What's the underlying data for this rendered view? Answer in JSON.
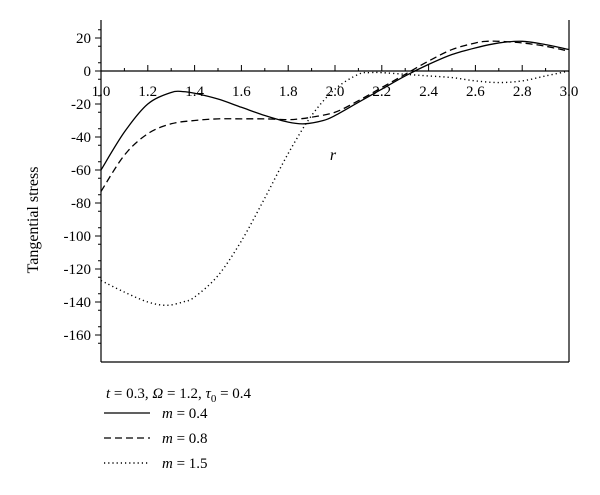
{
  "chart_data": {
    "type": "line",
    "title": "",
    "xlabel": "r",
    "ylabel": "Tangential stress",
    "xlim": [
      1.0,
      3.0
    ],
    "ylim": [
      -170,
      30
    ],
    "x_ticks": [
      1.0,
      1.2,
      1.4,
      1.6,
      1.8,
      2.0,
      2.2,
      2.4,
      2.6,
      2.8,
      3.0
    ],
    "x_tick_labels": [
      "1.0",
      "1.2",
      "1.4",
      "1.6",
      "1.8",
      "2.0",
      "2.2",
      "2.4",
      "2.6",
      "2.8",
      "3.0"
    ],
    "y_ticks": [
      20,
      0,
      -20,
      -40,
      -60,
      -80,
      -100,
      -120,
      -140,
      -160
    ],
    "y_tick_labels": [
      "20",
      "0",
      "-20",
      "-40",
      "-60",
      "-80",
      "-100",
      "-120",
      "-140",
      "-160"
    ],
    "grid": false,
    "legend_position": "bottom-left",
    "legend_header": {
      "t_label": "t",
      "t_value": " = 0.3, ",
      "omega_label": "Ω",
      "omega_value": " = 1.2, ",
      "tau_label": "τ",
      "tau_sub": "0",
      "tau_value": " = 0.4"
    },
    "series": [
      {
        "name": "m = 0.4",
        "name_var": "m",
        "name_value": " = 0.4",
        "style": "solid",
        "x": [
          1.0,
          1.1,
          1.2,
          1.3,
          1.35,
          1.4,
          1.5,
          1.6,
          1.7,
          1.8,
          1.87,
          1.95,
          2.0,
          2.1,
          2.2,
          2.3,
          2.4,
          2.5,
          2.6,
          2.7,
          2.8,
          2.9,
          3.0
        ],
        "y": [
          -60,
          -37,
          -20,
          -13,
          -12.5,
          -13.5,
          -17,
          -22,
          -27,
          -31,
          -32,
          -30,
          -27,
          -19,
          -11,
          -3,
          4,
          10,
          14,
          17,
          18,
          16,
          13
        ]
      },
      {
        "name": "m = 0.8",
        "name_var": "m",
        "name_value": " = 0.8",
        "style": "dashed",
        "x": [
          1.0,
          1.1,
          1.2,
          1.3,
          1.4,
          1.5,
          1.6,
          1.7,
          1.8,
          1.85,
          1.9,
          2.0,
          2.1,
          2.2,
          2.3,
          2.4,
          2.5,
          2.6,
          2.65,
          2.7,
          2.8,
          2.9,
          3.0
        ],
        "y": [
          -73,
          -51,
          -38,
          -32,
          -30,
          -29,
          -29,
          -29,
          -29.5,
          -29,
          -28,
          -25,
          -18,
          -10,
          -2,
          6,
          13,
          17,
          18,
          18,
          17,
          15,
          12
        ]
      },
      {
        "name": "m = 1.5",
        "name_var": "m",
        "name_value": " = 1.5",
        "style": "dotted",
        "x": [
          1.0,
          1.1,
          1.2,
          1.28,
          1.35,
          1.4,
          1.5,
          1.6,
          1.7,
          1.8,
          1.9,
          2.0,
          2.1,
          2.15,
          2.2,
          2.3,
          2.4,
          2.5,
          2.6,
          2.7,
          2.8,
          2.9,
          3.0
        ],
        "y": [
          -127,
          -134,
          -140,
          -142,
          -140,
          -137,
          -124,
          -103,
          -77,
          -50,
          -27,
          -11,
          -2,
          -1,
          -1,
          -2,
          -3,
          -4,
          -6,
          -7,
          -6,
          -3,
          0
        ]
      }
    ]
  }
}
